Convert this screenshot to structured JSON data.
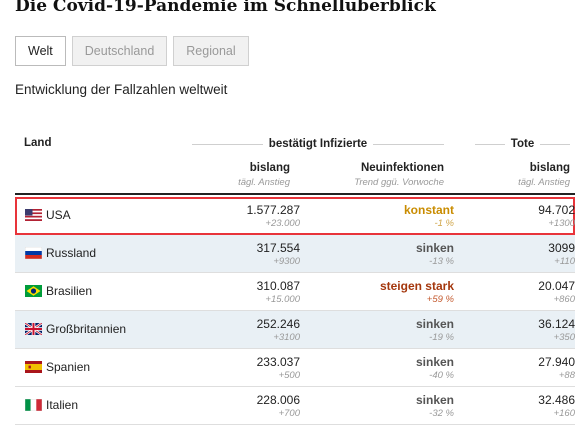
{
  "page": {
    "title": "Die Covid-19-Pandemie im Schnellüberblick"
  },
  "tabs": [
    {
      "label": "Welt",
      "active": true
    },
    {
      "label": "Deutschland",
      "active": false
    },
    {
      "label": "Regional",
      "active": false
    }
  ],
  "subtitle": "Entwicklung der Fallzahlen weltweit",
  "table": {
    "header": {
      "land": "Land",
      "group_infected": "bestätigt Infizierte",
      "group_deaths": "Tote",
      "col_total": "bislang",
      "col_total_sub": "tägl. Anstieg",
      "col_new": "Neuinfektionen",
      "col_new_sub": "Trend ggü. Vorwoche",
      "col_deaths": "bislang",
      "col_deaths_sub": "tägl. Anstieg"
    },
    "rows": [
      {
        "country": "USA",
        "flag": "us-flag-icon",
        "total": "1.577.287",
        "daily": "+23.000",
        "trend": "konstant",
        "trend_pct": "-1 %",
        "deaths": "94.702",
        "deaths_daily": "+1300"
      },
      {
        "country": "Russland",
        "flag": "russia-flag-icon",
        "total": "317.554",
        "daily": "+9300",
        "trend": "sinken",
        "trend_pct": "-13 %",
        "deaths": "3099",
        "deaths_daily": "+110"
      },
      {
        "country": "Brasilien",
        "flag": "brazil-flag-icon",
        "total": "310.087",
        "daily": "+15.000",
        "trend": "steigen stark",
        "trend_pct": "+59 %",
        "deaths": "20.047",
        "deaths_daily": "+860"
      },
      {
        "country": "Großbritannien",
        "flag": "uk-flag-icon",
        "total": "252.246",
        "daily": "+3100",
        "trend": "sinken",
        "trend_pct": "-19 %",
        "deaths": "36.124",
        "deaths_daily": "+350"
      },
      {
        "country": "Spanien",
        "flag": "spain-flag-icon",
        "total": "233.037",
        "daily": "+500",
        "trend": "sinken",
        "trend_pct": "-40 %",
        "deaths": "27.940",
        "deaths_daily": "+88"
      },
      {
        "country": "Italien",
        "flag": "italy-flag-icon",
        "total": "228.006",
        "daily": "+700",
        "trend": "sinken",
        "trend_pct": "-32 %",
        "deaths": "32.486",
        "deaths_daily": "+160"
      }
    ]
  },
  "colors": {
    "highlight": "#e8343a",
    "trend_constant": "#c98c00",
    "trend_rising": "#a4370d",
    "row_alt": "#e9f0f5"
  }
}
